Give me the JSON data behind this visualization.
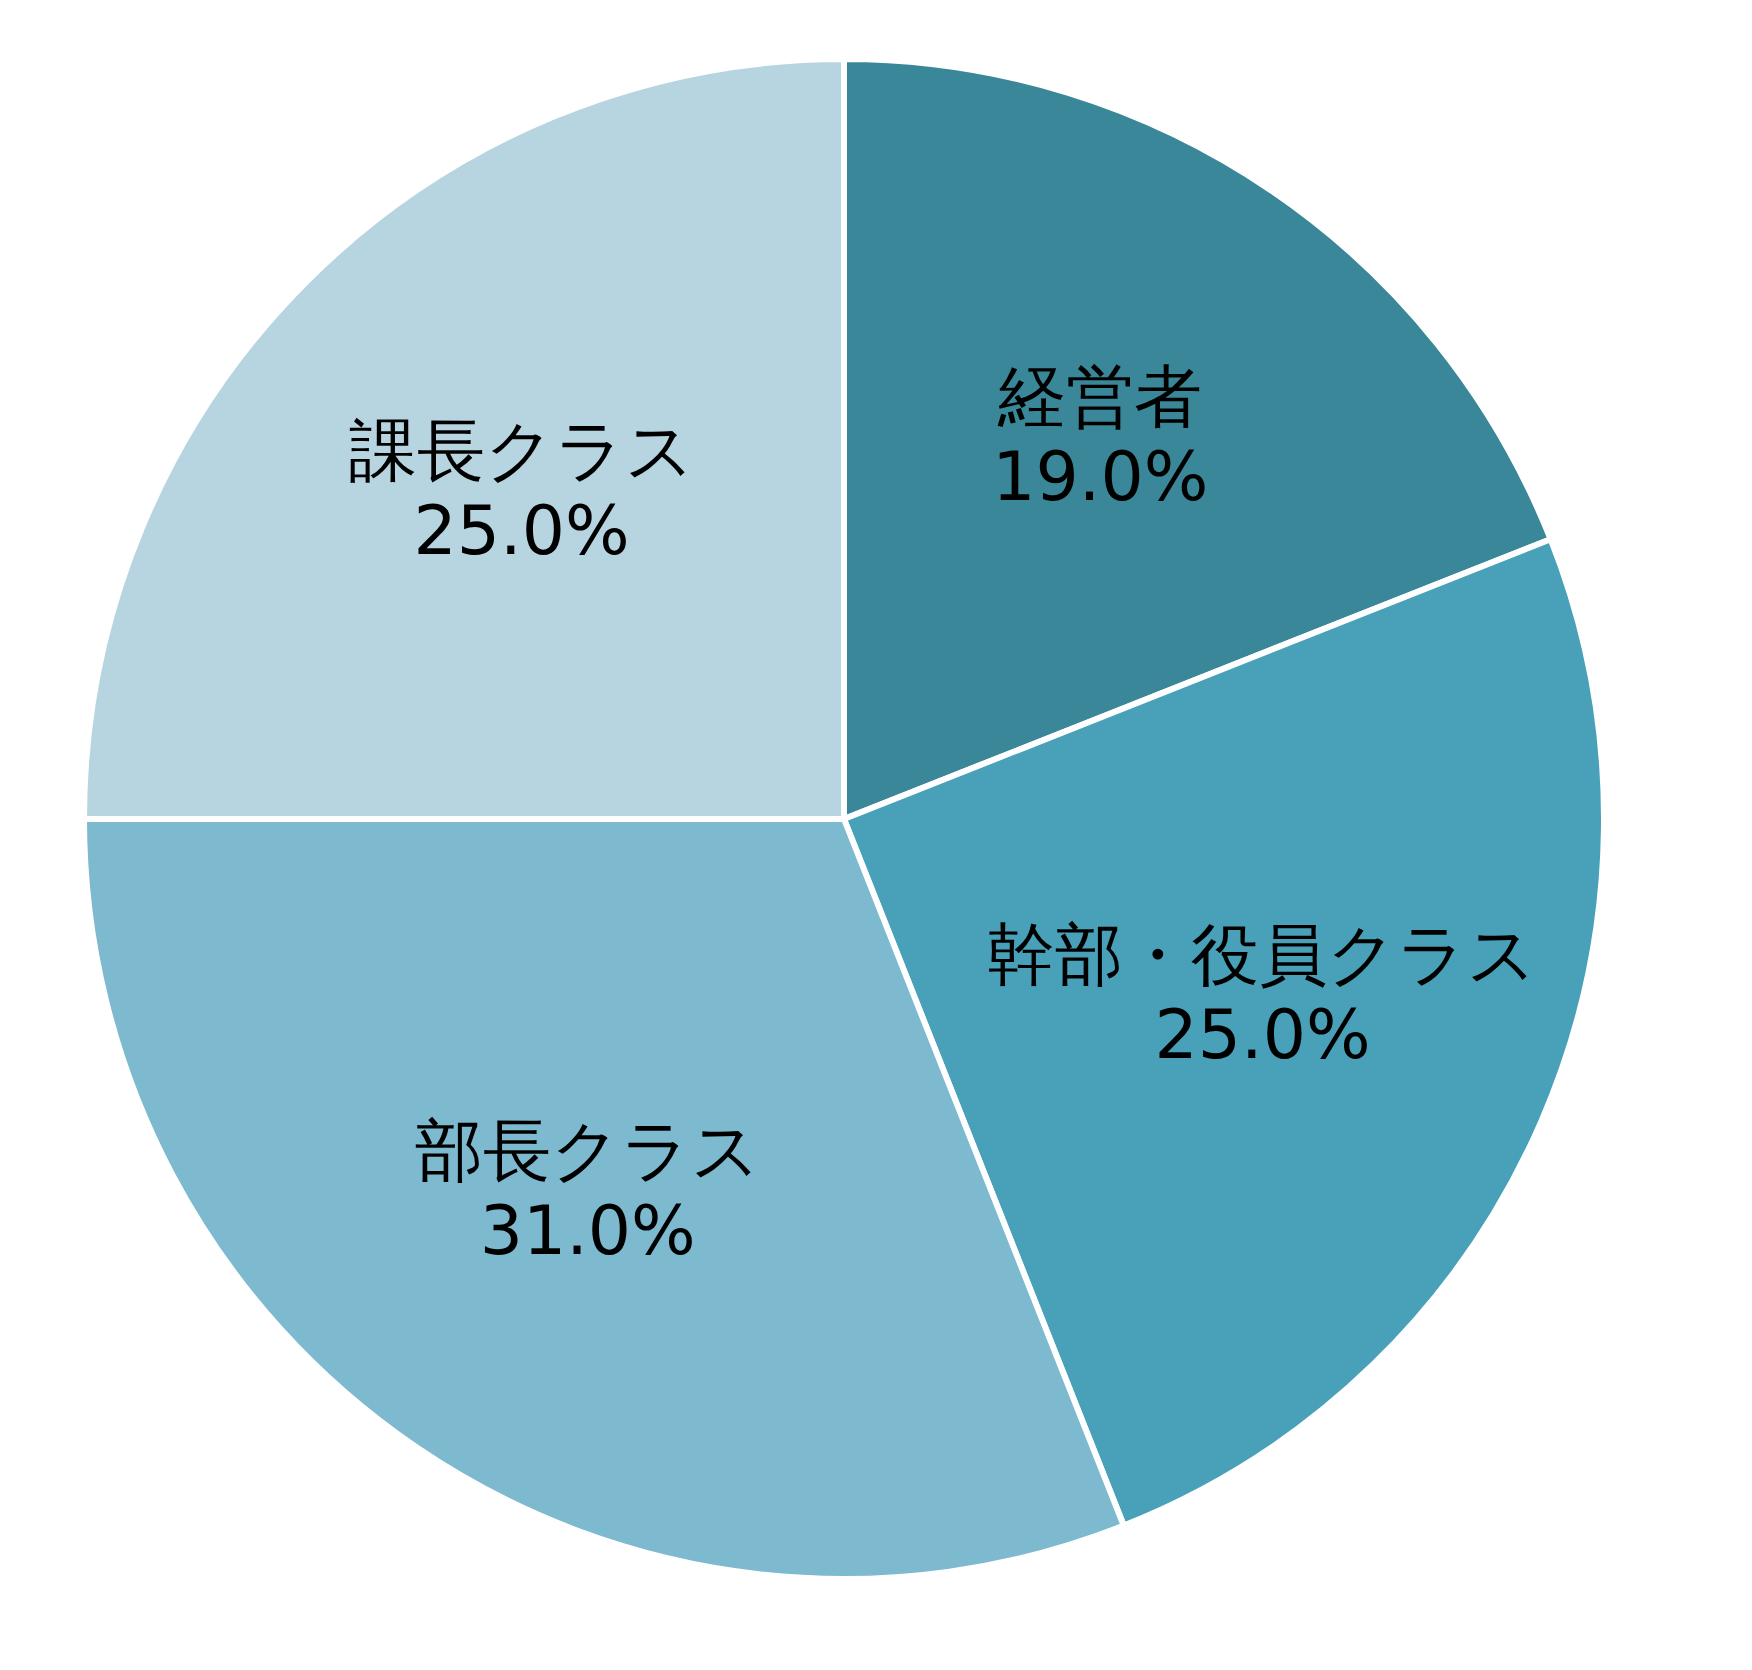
{
  "chart_data": {
    "type": "pie",
    "categories": [
      "経営者",
      "幹部・役員クラス",
      "部長クラス",
      "課長クラス"
    ],
    "values": [
      19,
      25,
      31,
      25
    ],
    "colors": [
      "#3a8799",
      "#48a1b9",
      "#7db9cf",
      "#b7d5e0"
    ],
    "value_labels": [
      "19.0%",
      "25.0%",
      "31.0%",
      "25.0%"
    ],
    "legend": false
  }
}
